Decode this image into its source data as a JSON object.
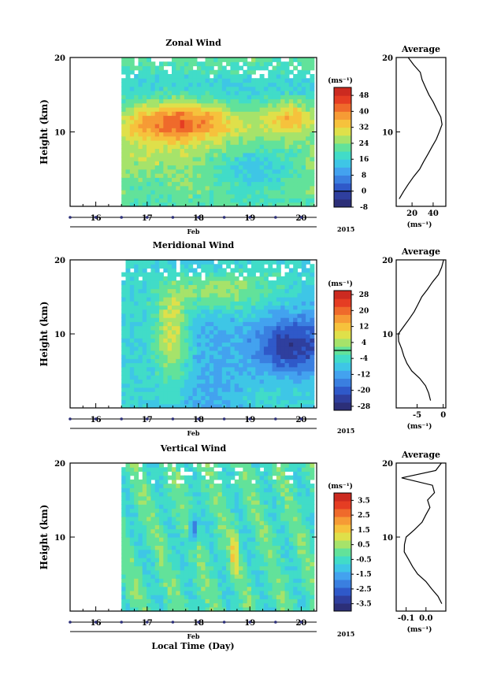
{
  "figure": {
    "xlabel": "Local Time (Day)",
    "month_label": "Feb",
    "year_label": "2015",
    "unit_label": "(ms⁻¹)",
    "avg_title": "Average"
  },
  "chart_data": [
    {
      "id": "zonal",
      "type": "heatmap",
      "title": "Zonal Wind",
      "ylabel": "Height (km)",
      "xlabel": "Local Time (Day)",
      "x_range": [
        15.5,
        20.3
      ],
      "data_x_range": [
        16.5,
        20.25
      ],
      "ylim": [
        0,
        20
      ],
      "x_ticks": [
        16,
        17,
        18,
        19,
        20
      ],
      "y_ticks": [
        10,
        20
      ],
      "colorbar": {
        "min": -8,
        "max": 52,
        "ticks": [
          48,
          40,
          32,
          24,
          16,
          8,
          0,
          -8
        ],
        "contour_at": 0
      },
      "features": [
        {
          "name": "jet",
          "x": 17.6,
          "y": 11.5,
          "sx": 1.3,
          "sy": 3.0,
          "v": 46
        },
        {
          "name": "jet-east",
          "x": 19.8,
          "y": 12.0,
          "sx": 0.6,
          "sy": 2.5,
          "v": 38
        },
        {
          "name": "low-weak",
          "x": 19.1,
          "y": 5.0,
          "sx": 0.9,
          "sy": 3.0,
          "v": 8
        },
        {
          "name": "low-west",
          "x": 17.0,
          "y": 3.0,
          "sx": 0.6,
          "sy": 2.0,
          "v": 16
        }
      ],
      "average_profile": {
        "xlim": [
          5,
          52
        ],
        "x_ticks": [
          20,
          40
        ],
        "height": [
          1,
          2,
          3,
          4,
          5,
          6,
          7,
          8,
          9,
          10,
          11,
          12,
          13,
          14,
          15,
          16,
          17,
          18,
          19,
          20
        ],
        "value": [
          8,
          12,
          17,
          22,
          27,
          31,
          35,
          39,
          43,
          46,
          48,
          47,
          44,
          40,
          36,
          33,
          30,
          28,
          22,
          16
        ]
      }
    },
    {
      "id": "meridional",
      "type": "heatmap",
      "title": "Meridional Wind",
      "ylabel": "Height (km)",
      "xlabel": "Local Time (Day)",
      "x_range": [
        15.5,
        20.3
      ],
      "data_x_range": [
        16.5,
        20.25
      ],
      "ylim": [
        0,
        20
      ],
      "x_ticks": [
        16,
        17,
        18,
        19,
        20
      ],
      "y_ticks": [
        10,
        20
      ],
      "colorbar": {
        "min": -30,
        "max": 30,
        "ticks": [
          28,
          20,
          12,
          4,
          -4,
          -12,
          -20,
          -28
        ],
        "contour_at": 0
      },
      "features": [
        {
          "name": "south-wind",
          "x": 19.8,
          "y": 8.5,
          "sx": 0.7,
          "sy": 4.0,
          "v": -28
        },
        {
          "name": "north-band",
          "x": 17.5,
          "y": 10.0,
          "sx": 0.35,
          "sy": 7.0,
          "v": 8
        },
        {
          "name": "upper-north",
          "x": 18.4,
          "y": 16.0,
          "sx": 0.8,
          "sy": 3.0,
          "v": 6
        }
      ],
      "average_profile": {
        "xlim": [
          -9,
          0.5
        ],
        "x_ticks": [
          -5,
          0
        ],
        "height": [
          1,
          2,
          3,
          4,
          5,
          6,
          7,
          8,
          9,
          10,
          11,
          12,
          13,
          14,
          15,
          16,
          17,
          18,
          19,
          20
        ],
        "value": [
          -2.5,
          -2.8,
          -3.3,
          -4.5,
          -6.0,
          -7.0,
          -7.6,
          -8.0,
          -8.5,
          -8.6,
          -7.5,
          -6.5,
          -5.5,
          -4.8,
          -4.0,
          -3.0,
          -2.0,
          -1.0,
          -0.2,
          0.0
        ]
      }
    },
    {
      "id": "vertical",
      "type": "heatmap",
      "title": "Vertical Wind",
      "ylabel": "Height (km)",
      "xlabel": "Local Time (Day)",
      "x_range": [
        15.5,
        20.3
      ],
      "data_x_range": [
        16.5,
        20.25
      ],
      "ylim": [
        0,
        20
      ],
      "x_ticks": [
        16,
        17,
        18,
        19,
        20
      ],
      "y_ticks": [
        10,
        20
      ],
      "colorbar": {
        "min": -4,
        "max": 4,
        "ticks": [
          3.5,
          2.5,
          1.5,
          0.5,
          -0.5,
          -1.5,
          -2.5,
          -3.5
        ]
      },
      "features": [
        {
          "name": "downdraft",
          "x": 17.9,
          "y": 11.0,
          "sx": 0.08,
          "sy": 2.0,
          "v": -2.6
        },
        {
          "name": "updraft",
          "x": 18.7,
          "y": 8.0,
          "sx": 0.06,
          "sy": 3.0,
          "v": 1.5
        }
      ],
      "average_profile": {
        "xlim": [
          -0.15,
          0.1
        ],
        "x_ticks": [
          -0.1,
          0.0
        ],
        "tick_labels": [
          "-0.1",
          "0.0"
        ],
        "height": [
          1,
          2,
          3,
          4,
          5,
          6,
          7,
          8,
          9,
          10,
          11,
          12,
          13,
          14,
          15,
          16,
          17,
          18,
          19,
          20
        ],
        "value": [
          0.08,
          0.06,
          0.03,
          0.0,
          -0.04,
          -0.07,
          -0.09,
          -0.11,
          -0.11,
          -0.1,
          -0.06,
          -0.02,
          0.0,
          0.02,
          0.01,
          0.04,
          0.03,
          -0.12,
          0.05,
          0.08
        ]
      }
    }
  ]
}
